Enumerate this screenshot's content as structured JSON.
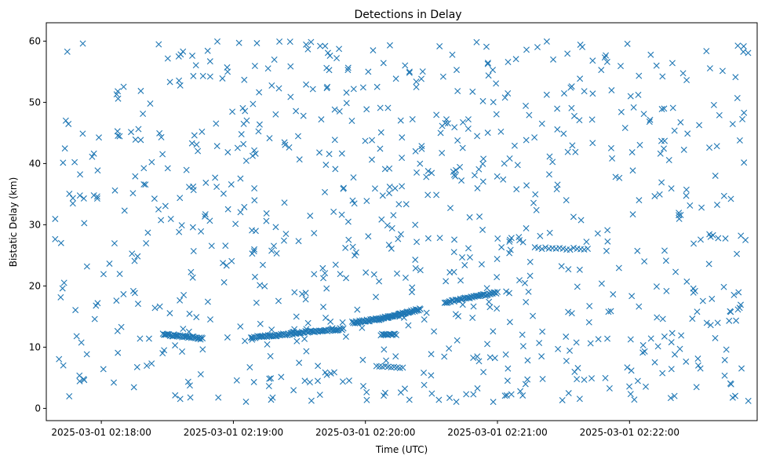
{
  "chart_data": {
    "type": "scatter",
    "title": "Detections in Delay",
    "xlabel": "Time (UTC)",
    "ylabel": "Bistatic Delay (km)",
    "x_unit": "seconds",
    "x_origin": "2025-03-01 02:17:00",
    "xlim": [
      35,
      358
    ],
    "ylim": [
      -2,
      63
    ],
    "xticks": [
      {
        "value": 60,
        "label": "2025-03-01 02:18:00"
      },
      {
        "value": 120,
        "label": "2025-03-01 02:19:00"
      },
      {
        "value": 180,
        "label": "2025-03-01 02:20:00"
      },
      {
        "value": 240,
        "label": "2025-03-01 02:21:00"
      },
      {
        "value": 300,
        "label": "2025-03-01 02:22:00"
      }
    ],
    "yticks": [
      0,
      10,
      20,
      30,
      40,
      50,
      60
    ],
    "marker": "x",
    "color": "#1f77b4",
    "grid": false,
    "legend": "none",
    "noise_seed": 12345,
    "noise_count": 820,
    "noise_x_range": [
      39,
      354
    ],
    "noise_y_range": [
      1,
      60
    ],
    "tracks": [
      {
        "t_start": 88,
        "t_end": 106,
        "y_start": 12.1,
        "y_end": 11.4,
        "points": 40
      },
      {
        "t_start": 128,
        "t_end": 147,
        "y_start": 11.6,
        "y_end": 12.2,
        "points": 40
      },
      {
        "t_start": 147,
        "t_end": 170,
        "y_start": 12.3,
        "y_end": 13.0,
        "points": 45
      },
      {
        "t_start": 174,
        "t_end": 186,
        "y_start": 14.0,
        "y_end": 14.6,
        "points": 30
      },
      {
        "t_start": 186,
        "t_end": 205,
        "y_start": 14.6,
        "y_end": 16.2,
        "points": 55
      },
      {
        "t_start": 187,
        "t_end": 194,
        "y_start": 12.0,
        "y_end": 12.1,
        "points": 14
      },
      {
        "t_start": 185,
        "t_end": 197,
        "y_start": 7.0,
        "y_end": 6.6,
        "points": 10
      },
      {
        "t_start": 216,
        "t_end": 240,
        "y_start": 17.3,
        "y_end": 18.9,
        "points": 45
      },
      {
        "t_start": 257,
        "t_end": 281,
        "y_start": 26.2,
        "y_end": 26.0,
        "points": 16
      }
    ]
  }
}
